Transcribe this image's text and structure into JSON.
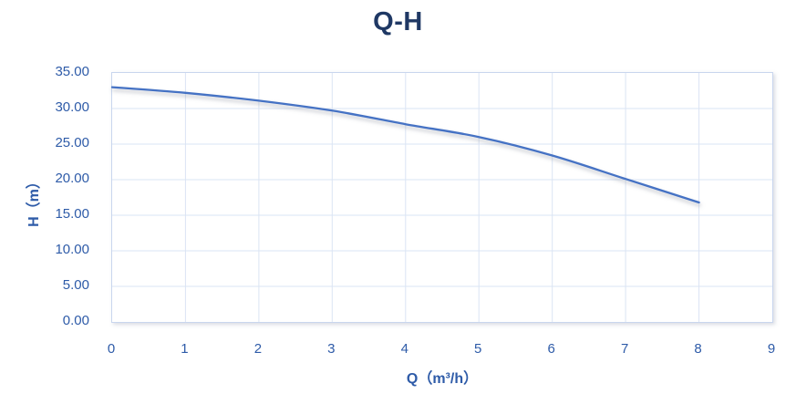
{
  "title": "Q-H",
  "colors": {
    "title_text": "#1F3864",
    "axis_text": "#2E5BA8",
    "curve": "#4472C4",
    "gridline": "#DAE4F4",
    "plot_border": "#C9D6EE"
  },
  "chart_data": {
    "type": "line",
    "title": "Q-H",
    "xlabel": "Q（m³/h）",
    "ylabel": "H（m）",
    "x": [
      0,
      1,
      2,
      3,
      4,
      5,
      6,
      7,
      8
    ],
    "series": [
      {
        "name": "H",
        "values": [
          33.0,
          32.2,
          31.1,
          29.7,
          27.8,
          26.0,
          23.4,
          20.1,
          16.8
        ]
      }
    ],
    "xlim": [
      0,
      9
    ],
    "ylim": [
      0,
      35
    ],
    "x_ticks": [
      {
        "value": 0,
        "label": "0"
      },
      {
        "value": 1,
        "label": "1"
      },
      {
        "value": 2,
        "label": "2"
      },
      {
        "value": 3,
        "label": "3"
      },
      {
        "value": 4,
        "label": "4"
      },
      {
        "value": 5,
        "label": "5"
      },
      {
        "value": 6,
        "label": "6"
      },
      {
        "value": 7,
        "label": "7"
      },
      {
        "value": 8,
        "label": "8"
      },
      {
        "value": 9,
        "label": "9"
      }
    ],
    "y_ticks": [
      {
        "value": 0,
        "label": "0.00"
      },
      {
        "value": 5,
        "label": "5.00"
      },
      {
        "value": 10,
        "label": "10.00"
      },
      {
        "value": 15,
        "label": "15.00"
      },
      {
        "value": 20,
        "label": "20.00"
      },
      {
        "value": 25,
        "label": "25.00"
      },
      {
        "value": 30,
        "label": "30.00"
      },
      {
        "value": 35,
        "label": "35.00"
      }
    ],
    "grid": true,
    "legend": "none",
    "line_has_shadow": true
  }
}
